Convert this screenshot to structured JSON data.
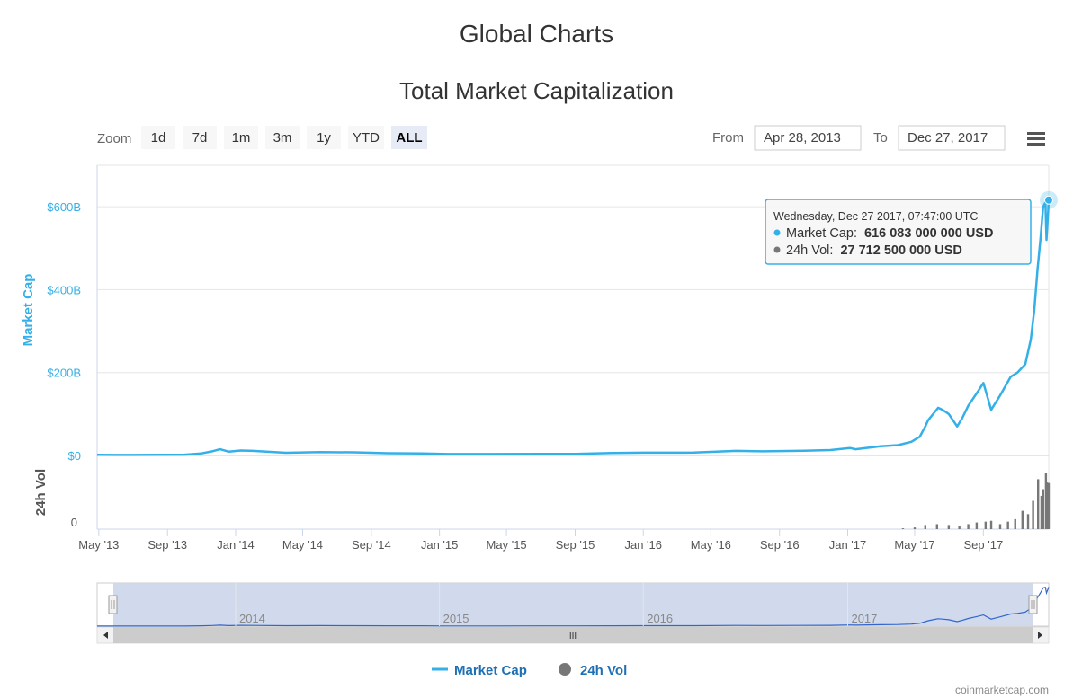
{
  "page": {
    "heading": "Global Charts",
    "credits": "coinmarketcap.com"
  },
  "toolbar": {
    "zoom_label": "Zoom",
    "zoom_buttons": [
      "1d",
      "7d",
      "1m",
      "3m",
      "1y",
      "YTD",
      "ALL"
    ],
    "selected_zoom": "ALL",
    "from_label": "From",
    "from_value": "Apr 28, 2013",
    "to_label": "To",
    "to_value": "Dec 27, 2017",
    "menu_icon": "hamburger-menu-icon"
  },
  "tooltip": {
    "date": "Wednesday, Dec 27 2017, 07:47:00 UTC",
    "mcap_label": "Market Cap:",
    "mcap_value": "616 083 000 000 USD",
    "vol_label": "24h Vol:",
    "vol_value": "27 712 500 000 USD"
  },
  "navigator": {
    "labels": [
      "2014",
      "2015",
      "2016",
      "2017"
    ],
    "scrollbar_grip": "III"
  },
  "legend": [
    {
      "name": "Market Cap",
      "color": "#34b0e8",
      "symbol": "line"
    },
    {
      "name": "24h Vol",
      "color": "#777777",
      "symbol": "circle"
    }
  ],
  "chart_data": {
    "type": "line",
    "title": "Total Market Capitalization",
    "x_tick_labels": [
      "May '13",
      "Sep '13",
      "Jan '14",
      "May '14",
      "Sep '14",
      "Jan '15",
      "May '15",
      "Sep '15",
      "Jan '16",
      "May '16",
      "Sep '16",
      "Jan '17",
      "May '17",
      "Sep '17"
    ],
    "x_range": [
      "2013-04-28",
      "2017-12-27"
    ],
    "y_axis": {
      "label": "Market Cap",
      "tick_labels": [
        "$0",
        "$200B",
        "$400B",
        "$600B"
      ],
      "ylim": [
        0,
        700
      ]
    },
    "y2_axis": {
      "label": "24h Vol",
      "tick_labels": [
        "0"
      ]
    },
    "grid": true,
    "legend_position": "bottom",
    "series": [
      {
        "name": "Market Cap",
        "unit": "billion USD",
        "color": "#34b0e8",
        "points": [
          [
            "2013-04-28",
            1.6
          ],
          [
            "2013-07-01",
            1.2
          ],
          [
            "2013-10-01",
            2.0
          ],
          [
            "2013-11-01",
            5.0
          ],
          [
            "2013-11-20",
            10.0
          ],
          [
            "2013-12-04",
            15.0
          ],
          [
            "2013-12-20",
            9.0
          ],
          [
            "2014-01-10",
            12.0
          ],
          [
            "2014-02-01",
            11.0
          ],
          [
            "2014-04-01",
            6.5
          ],
          [
            "2014-06-01",
            8.0
          ],
          [
            "2014-08-01",
            7.5
          ],
          [
            "2014-10-01",
            5.5
          ],
          [
            "2014-12-01",
            5.0
          ],
          [
            "2015-01-15",
            3.5
          ],
          [
            "2015-04-01",
            3.5
          ],
          [
            "2015-07-01",
            4.0
          ],
          [
            "2015-09-01",
            3.8
          ],
          [
            "2015-11-05",
            6.0
          ],
          [
            "2016-01-01",
            6.8
          ],
          [
            "2016-04-01",
            7.0
          ],
          [
            "2016-06-15",
            11.0
          ],
          [
            "2016-08-01",
            10.0
          ],
          [
            "2016-10-01",
            11.0
          ],
          [
            "2016-12-01",
            13.0
          ],
          [
            "2017-01-05",
            18.0
          ],
          [
            "2017-01-15",
            15.0
          ],
          [
            "2017-03-01",
            22.0
          ],
          [
            "2017-04-01",
            25.0
          ],
          [
            "2017-04-25",
            33.0
          ],
          [
            "2017-05-10",
            45.0
          ],
          [
            "2017-05-20",
            70.0
          ],
          [
            "2017-05-25",
            85.0
          ],
          [
            "2017-06-06",
            105.0
          ],
          [
            "2017-06-12",
            115.0
          ],
          [
            "2017-06-20",
            110.0
          ],
          [
            "2017-07-01",
            100.0
          ],
          [
            "2017-07-16",
            70.0
          ],
          [
            "2017-07-25",
            90.0
          ],
          [
            "2017-08-05",
            120.0
          ],
          [
            "2017-08-20",
            150.0
          ],
          [
            "2017-09-01",
            175.0
          ],
          [
            "2017-09-15",
            110.0
          ],
          [
            "2017-10-01",
            145.0
          ],
          [
            "2017-10-20",
            190.0
          ],
          [
            "2017-11-01",
            200.0
          ],
          [
            "2017-11-15",
            220.0
          ],
          [
            "2017-11-25",
            280.0
          ],
          [
            "2017-12-01",
            350.0
          ],
          [
            "2017-12-07",
            450.0
          ],
          [
            "2017-12-12",
            520.0
          ],
          [
            "2017-12-17",
            600.0
          ],
          [
            "2017-12-21",
            610.0
          ],
          [
            "2017-12-23",
            520.0
          ],
          [
            "2017-12-26",
            590.0
          ],
          [
            "2017-12-27",
            616.083
          ]
        ]
      },
      {
        "name": "24h Vol",
        "unit": "billion USD",
        "color": "#777777",
        "points": [
          [
            "2017-04-10",
            0.5
          ],
          [
            "2017-05-01",
            1.0
          ],
          [
            "2017-05-20",
            2.5
          ],
          [
            "2017-06-10",
            3.0
          ],
          [
            "2017-07-01",
            2.5
          ],
          [
            "2017-07-20",
            2.0
          ],
          [
            "2017-08-05",
            3.0
          ],
          [
            "2017-08-20",
            4.0
          ],
          [
            "2017-09-05",
            4.5
          ],
          [
            "2017-09-15",
            5.0
          ],
          [
            "2017-10-01",
            3.0
          ],
          [
            "2017-10-15",
            4.5
          ],
          [
            "2017-10-28",
            6.0
          ],
          [
            "2017-11-10",
            11.0
          ],
          [
            "2017-11-20",
            9.0
          ],
          [
            "2017-11-29",
            17.0
          ],
          [
            "2017-12-08",
            30.0
          ],
          [
            "2017-12-14",
            20.0
          ],
          [
            "2017-12-17",
            24.0
          ],
          [
            "2017-12-22",
            34.0
          ],
          [
            "2017-12-24",
            28.0
          ],
          [
            "2017-12-27",
            27.7
          ]
        ]
      }
    ]
  }
}
